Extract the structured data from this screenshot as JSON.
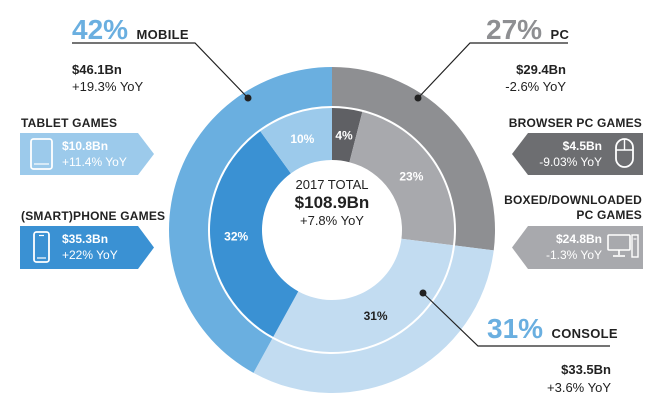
{
  "colors": {
    "mobile_outer": "#6aafe0",
    "pc_outer": "#8e8f92",
    "console_outer": "#c2dcf1",
    "tablet_inner": "#9ccaeb",
    "phone_inner": "#3a91d3",
    "browser_inner": "#5f6064",
    "boxed_inner": "#a8a9ad",
    "console_inner": "#c2dcf1",
    "mobile_tag": "#3a91d3",
    "tablet_tag": "#9ccaeb",
    "pc_tag": "#6d6e71",
    "boxed_tag": "#a8a9ad",
    "accent_mobile_text": "#6aafe0",
    "accent_pc_text": "#8e8f92",
    "accent_console_text": "#6aafe0"
  },
  "center": {
    "label": "2017 TOTAL",
    "value": "$108.9Bn",
    "yoy": "+7.8% YoY"
  },
  "mobile": {
    "pct": "42%",
    "name": "MOBILE",
    "value": "$46.1Bn",
    "yoy": "+19.3% YoY"
  },
  "pc": {
    "pct": "27%",
    "name": "PC",
    "value": "$29.4Bn",
    "yoy": "-2.6% YoY"
  },
  "console": {
    "pct": "31%",
    "name": "CONSOLE",
    "value": "$33.5Bn",
    "yoy": "+3.6% YoY"
  },
  "tablet": {
    "title": "TABLET GAMES",
    "value": "$10.8Bn",
    "yoy": "+11.4% YoY",
    "icon": "tablet-icon"
  },
  "phone": {
    "title": "(SMART)PHONE GAMES",
    "value": "$35.3Bn",
    "yoy": "+22% YoY",
    "icon": "smartphone-icon"
  },
  "browser": {
    "title": "BROWSER PC GAMES",
    "value": "$4.5Bn",
    "yoy": "-9.03% YoY",
    "icon": "mouse-icon"
  },
  "boxed": {
    "title_line1": "BOXED/DOWNLOADED",
    "title_line2": "PC GAMES",
    "value": "$24.8Bn",
    "yoy": "-1.3% YoY",
    "icon": "desktop-computer-icon"
  },
  "chart_data": {
    "type": "pie",
    "title": "2017 TOTAL",
    "total": "$108.9Bn",
    "outer_ring": {
      "labels": [
        "MOBILE",
        "PC",
        "CONSOLE"
      ],
      "values": [
        42,
        27,
        31
      ],
      "revenue": [
        "$46.1Bn",
        "$29.4Bn",
        "$33.5Bn"
      ],
      "yoy": [
        "+19.3% YoY",
        "-2.6% YoY",
        "+3.6% YoY"
      ]
    },
    "inner_ring": {
      "labels": [
        "BROWSER PC GAMES",
        "BOXED/DOWNLOADED PC GAMES",
        "CONSOLE",
        "(SMART)PHONE GAMES",
        "TABLET GAMES"
      ],
      "values": [
        4,
        23,
        31,
        32,
        10
      ],
      "display": [
        "4%",
        "23%",
        "31%",
        "32%",
        "10%"
      ],
      "revenue": [
        "$4.5Bn",
        "$24.8Bn",
        "$33.5Bn",
        "$35.3Bn",
        "$10.8Bn"
      ],
      "yoy": [
        "-9.03% YoY",
        "-1.3% YoY",
        "+3.6% YoY",
        "+22% YoY",
        "+11.4% YoY"
      ]
    }
  }
}
